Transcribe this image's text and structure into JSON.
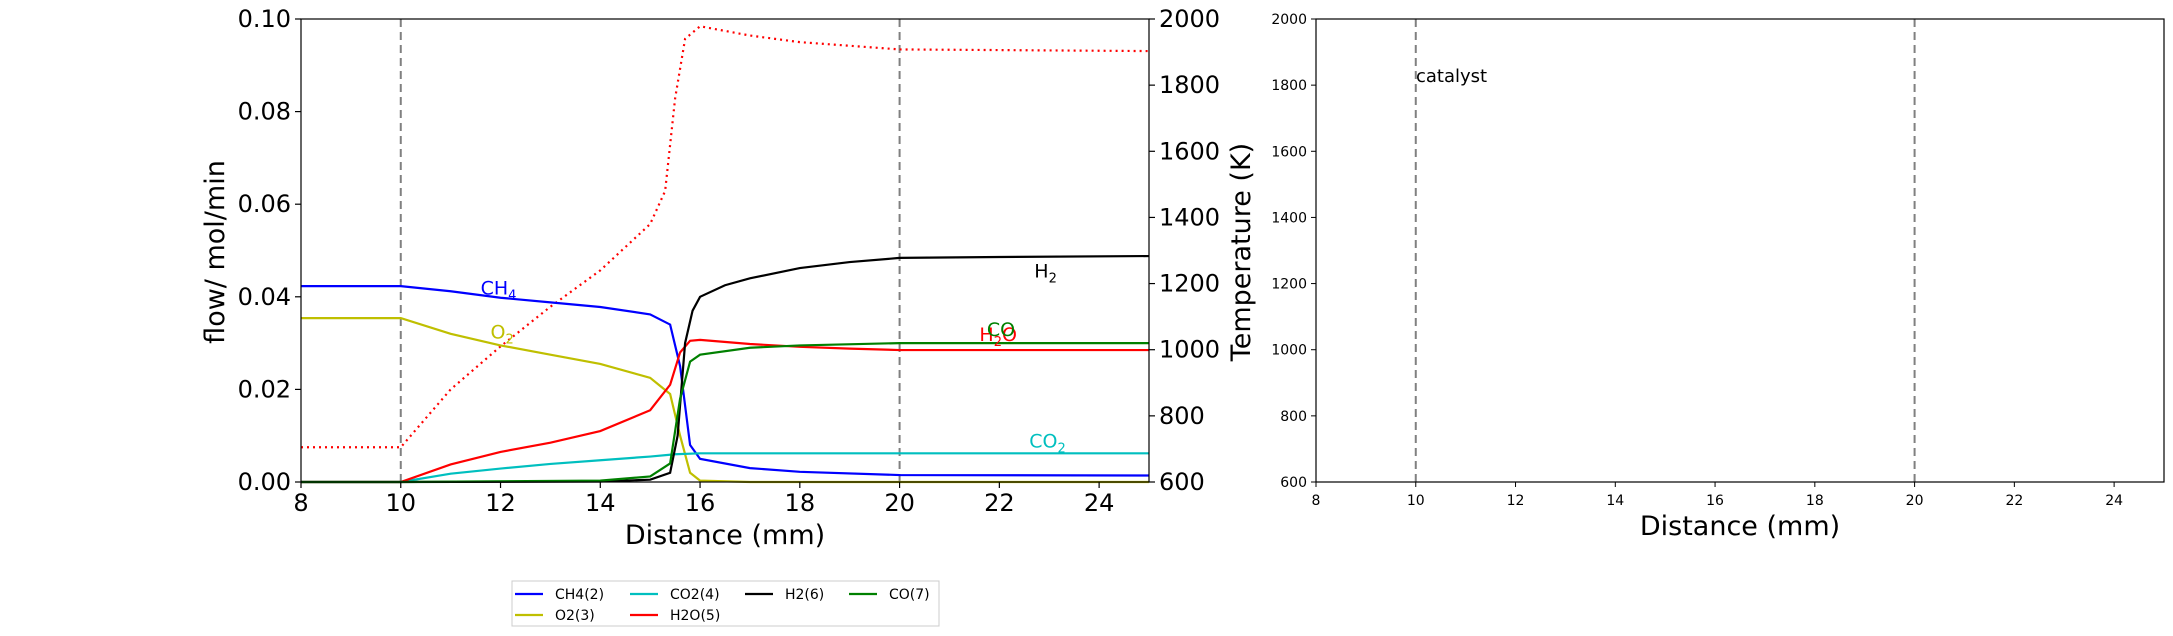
{
  "chart_data": [
    {
      "type": "line",
      "xlabel": "Distance (mm)",
      "ylabel": "flow/ mol/min",
      "y2label": "Temperature (K)",
      "xlim": [
        8,
        25
      ],
      "ylim": [
        0,
        0.1
      ],
      "y2lim": [
        600,
        2000
      ],
      "xticks": [
        "8",
        "10",
        "12",
        "14",
        "16",
        "18",
        "20",
        "22",
        "24"
      ],
      "yticks": [
        "0.00",
        "0.02",
        "0.04",
        "0.06",
        "0.08",
        "0.10"
      ],
      "y2ticks": [
        "600",
        "800",
        "1000",
        "1200",
        "1400",
        "1600",
        "1800",
        "2000"
      ],
      "vlines": [
        10,
        20
      ],
      "series": [
        {
          "name": "CH4(2)",
          "label": "CH",
          "sub": "4",
          "color": "#0000ff",
          "label_pos": [
            11.6,
            0.0405
          ],
          "points": [
            [
              8,
              0.0423
            ],
            [
              10,
              0.0423
            ],
            [
              11,
              0.0412
            ],
            [
              12,
              0.0398
            ],
            [
              13,
              0.0388
            ],
            [
              14,
              0.0378
            ],
            [
              15,
              0.0362
            ],
            [
              15.4,
              0.034
            ],
            [
              15.6,
              0.025
            ],
            [
              15.8,
              0.008
            ],
            [
              16,
              0.005
            ],
            [
              17,
              0.003
            ],
            [
              18,
              0.0022
            ],
            [
              20,
              0.0015
            ],
            [
              25,
              0.0014
            ]
          ]
        },
        {
          "name": "O2(3)",
          "label": "O",
          "sub": "2",
          "color": "#bfbf00",
          "label_pos": [
            11.8,
            0.031
          ],
          "points": [
            [
              8,
              0.0354
            ],
            [
              10,
              0.0354
            ],
            [
              11,
              0.032
            ],
            [
              12,
              0.0295
            ],
            [
              13,
              0.0275
            ],
            [
              14,
              0.0255
            ],
            [
              15,
              0.0225
            ],
            [
              15.4,
              0.019
            ],
            [
              15.6,
              0.01
            ],
            [
              15.8,
              0.002
            ],
            [
              16,
              0.0003
            ],
            [
              17,
              0
            ],
            [
              25,
              0
            ]
          ]
        },
        {
          "name": "CO2(4)",
          "label": "CO",
          "sub": "2",
          "color": "#00bfbf",
          "label_pos": [
            22.6,
            0.0075
          ],
          "points": [
            [
              8,
              0
            ],
            [
              10,
              0
            ],
            [
              11,
              0.0018
            ],
            [
              12,
              0.0029
            ],
            [
              13,
              0.0039
            ],
            [
              14,
              0.0047
            ],
            [
              15,
              0.0055
            ],
            [
              15.5,
              0.006
            ],
            [
              16,
              0.0062
            ],
            [
              20,
              0.0062
            ],
            [
              25,
              0.0062
            ]
          ]
        },
        {
          "name": "H2O(5)",
          "label": "H",
          "sub": "2",
          "tail": "O",
          "color": "#ff0000",
          "label_pos": [
            21.6,
            0.0305
          ],
          "points": [
            [
              8,
              0
            ],
            [
              10,
              0
            ],
            [
              11,
              0.0038
            ],
            [
              12,
              0.0065
            ],
            [
              13,
              0.0085
            ],
            [
              14,
              0.011
            ],
            [
              15,
              0.0155
            ],
            [
              15.4,
              0.021
            ],
            [
              15.6,
              0.028
            ],
            [
              15.8,
              0.0305
            ],
            [
              16,
              0.0307
            ],
            [
              17,
              0.0298
            ],
            [
              18,
              0.0292
            ],
            [
              19,
              0.0288
            ],
            [
              20,
              0.0285
            ],
            [
              25,
              0.0285
            ]
          ]
        },
        {
          "name": "H2(6)",
          "label": "H",
          "sub": "2",
          "color": "#000000",
          "label_pos": [
            22.7,
            0.0442
          ],
          "points": [
            [
              8,
              0
            ],
            [
              10,
              0
            ],
            [
              14,
              0.0001
            ],
            [
              15,
              0.0005
            ],
            [
              15.4,
              0.002
            ],
            [
              15.55,
              0.01
            ],
            [
              15.7,
              0.03
            ],
            [
              15.85,
              0.037
            ],
            [
              16,
              0.04
            ],
            [
              16.5,
              0.0425
            ],
            [
              17,
              0.044
            ],
            [
              18,
              0.0462
            ],
            [
              19,
              0.0475
            ],
            [
              20,
              0.0484
            ],
            [
              22,
              0.0486
            ],
            [
              25,
              0.0488
            ]
          ]
        },
        {
          "name": "CO(7)",
          "label": "CO",
          "sub": "",
          "color": "#008000",
          "label_pos": [
            21.75,
            0.0315
          ],
          "points": [
            [
              8,
              0
            ],
            [
              10,
              0
            ],
            [
              14,
              0.0003
            ],
            [
              15,
              0.0012
            ],
            [
              15.4,
              0.004
            ],
            [
              15.6,
              0.018
            ],
            [
              15.8,
              0.026
            ],
            [
              16,
              0.0275
            ],
            [
              17,
              0.029
            ],
            [
              18,
              0.0295
            ],
            [
              20,
              0.03
            ],
            [
              25,
              0.03
            ]
          ]
        }
      ],
      "temperature": {
        "color": "#ff0000",
        "style": "dotted",
        "points": [
          [
            8,
            705
          ],
          [
            10,
            705
          ],
          [
            11,
            880
          ],
          [
            12,
            1010
          ],
          [
            13,
            1130
          ],
          [
            14,
            1240
          ],
          [
            15,
            1380
          ],
          [
            15.3,
            1480
          ],
          [
            15.5,
            1760
          ],
          [
            15.7,
            1940
          ],
          [
            16,
            1978
          ],
          [
            17,
            1950
          ],
          [
            18,
            1930
          ],
          [
            20,
            1908
          ],
          [
            25,
            1903
          ]
        ]
      },
      "legend": {
        "placement": "below",
        "entries": [
          {
            "label": "CH4(2)",
            "color": "#0000ff"
          },
          {
            "label": "CO2(4)",
            "color": "#00bfbf"
          },
          {
            "label": "H2(6)",
            "color": "#000000"
          },
          {
            "label": "CO(7)",
            "color": "#008000"
          },
          {
            "label": "O2(3)",
            "color": "#bfbf00"
          },
          {
            "label": "H2O(5)",
            "color": "#ff0000"
          }
        ]
      }
    },
    {
      "type": "line",
      "xlabel": "Distance (mm)",
      "ylabel": "",
      "xlim": [
        8,
        25
      ],
      "ylim": [
        600,
        2000
      ],
      "xticks": [
        "8",
        "10",
        "12",
        "14",
        "16",
        "18",
        "20",
        "22",
        "24"
      ],
      "yticks": [
        "600",
        "800",
        "1000",
        "1200",
        "1400",
        "1600",
        "1800",
        "2000"
      ],
      "vlines": [
        10,
        20
      ],
      "annotation": "catalyst",
      "series": []
    }
  ]
}
